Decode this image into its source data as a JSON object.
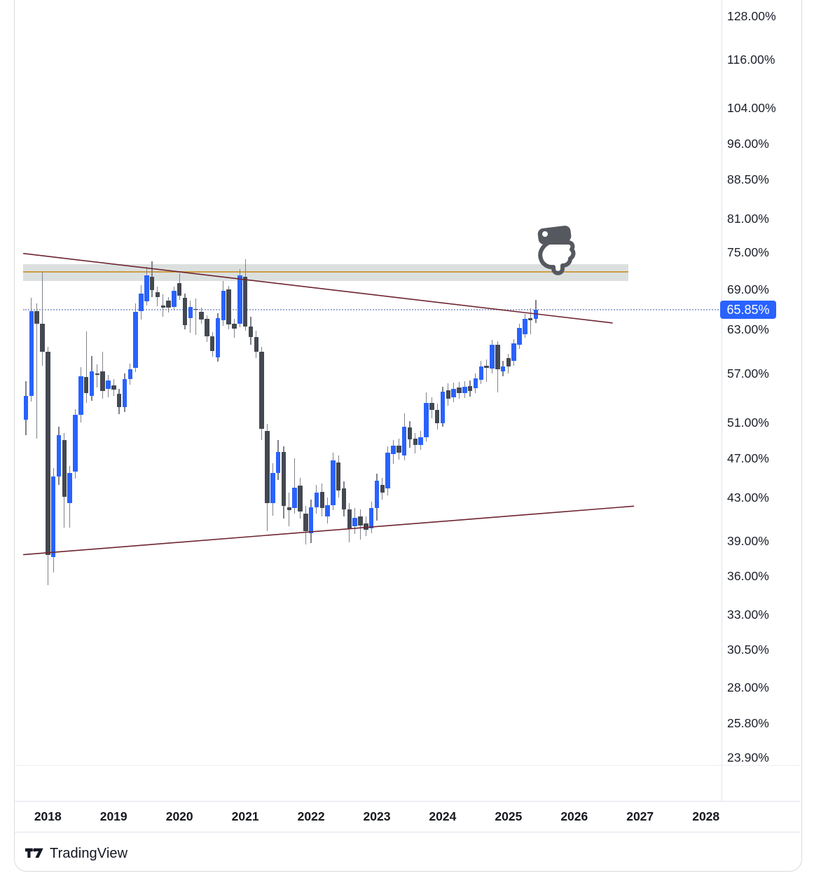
{
  "price_axis": {
    "tick_labels": [
      "128.00%",
      "116.00%",
      "104.00%",
      "96.00%",
      "88.50%",
      "81.00%",
      "75.00%",
      "69.00%",
      "63.00%",
      "57.00%",
      "51.00%",
      "47.00%",
      "43.00%",
      "39.00%",
      "36.00%",
      "33.00%",
      "30.50%",
      "28.00%",
      "25.80%",
      "23.90%"
    ],
    "tick_values": [
      128,
      116,
      104,
      96,
      88.5,
      81,
      75,
      69,
      63,
      57,
      51,
      47,
      43,
      39,
      36,
      33,
      30.5,
      28,
      25.8,
      23.9
    ],
    "last_price": {
      "value": 65.85,
      "label": "65.85%",
      "bg_color": "#2962FF",
      "text_color": "#ffffff"
    }
  },
  "time_axis": {
    "year_labels": [
      "2018",
      "2019",
      "2020",
      "2021",
      "2022",
      "2023",
      "2024",
      "2025",
      "2026",
      "2027",
      "2028"
    ],
    "first_year": 2018
  },
  "footer": {
    "brand": "TradingView"
  },
  "chart_data": {
    "type": "candlestick",
    "timeframe": "monthly",
    "start_month": "2017-09",
    "end_month": "2025-06",
    "y_scale": "log",
    "y_axis_visible_range_pct": [
      21.6,
      132.7
    ],
    "grid": "off",
    "last_price": 65.85,
    "colors": {
      "up": "#2962FF",
      "down": "#444850",
      "wick": "#7f828b",
      "trendline": "#6e2430",
      "zone_fill": "#cfd5d4",
      "zone_line": "#cf9d43",
      "price_line": "#9aabd6",
      "hand": "#55585e"
    },
    "candles": [
      [
        51.3,
        56.0,
        49.6,
        54.2
      ],
      [
        54.2,
        67.6,
        53.5,
        65.6
      ],
      [
        65.6,
        66.8,
        49.2,
        63.8
      ],
      [
        63.8,
        71.8,
        58.0,
        59.9
      ],
      [
        59.9,
        60.5,
        35.3,
        37.8
      ],
      [
        37.6,
        46.0,
        36.3,
        45.1
      ],
      [
        45.1,
        50.5,
        44.3,
        49.6
      ],
      [
        49.0,
        49.8,
        40.2,
        43.1
      ],
      [
        42.5,
        46.2,
        40.2,
        45.5
      ],
      [
        45.6,
        52.6,
        44.9,
        51.9
      ],
      [
        51.9,
        57.8,
        51.0,
        56.6
      ],
      [
        56.5,
        62.7,
        53.3,
        54.5
      ],
      [
        54.2,
        59.3,
        53.6,
        57.3
      ],
      [
        57.0,
        58.2,
        55.2,
        56.8
      ],
      [
        57.3,
        59.9,
        53.8,
        54.8
      ],
      [
        55.0,
        56.8,
        54.0,
        56.1
      ],
      [
        55.5,
        56.3,
        54.2,
        54.9
      ],
      [
        54.4,
        55.0,
        52.0,
        52.8
      ],
      [
        52.8,
        57.0,
        52.2,
        56.3
      ],
      [
        56.3,
        58.3,
        55.6,
        57.5
      ],
      [
        57.7,
        66.8,
        57.2,
        65.5
      ],
      [
        65.6,
        69.6,
        64.4,
        68.3
      ],
      [
        67.1,
        72.5,
        66.5,
        71.2
      ],
      [
        71.0,
        73.5,
        67.8,
        68.8
      ],
      [
        68.5,
        69.4,
        66.4,
        67.8
      ],
      [
        66.5,
        68.2,
        64.8,
        66.2
      ],
      [
        67.2,
        67.8,
        65.4,
        66.2
      ],
      [
        66.3,
        69.4,
        65.7,
        68.7
      ],
      [
        69.9,
        71.5,
        67.3,
        68.0
      ],
      [
        67.7,
        68.3,
        63.0,
        63.6
      ],
      [
        64.6,
        67.2,
        62.5,
        66.3
      ],
      [
        66.0,
        67.5,
        62.2,
        65.8
      ],
      [
        65.5,
        66.2,
        63.8,
        64.4
      ],
      [
        64.5,
        65.0,
        61.2,
        62.0
      ],
      [
        62.0,
        62.6,
        59.2,
        60.0
      ],
      [
        59.1,
        65.3,
        58.5,
        64.6
      ],
      [
        64.3,
        70.3,
        63.5,
        68.7
      ],
      [
        68.9,
        69.5,
        63.0,
        63.7
      ],
      [
        63.8,
        64.5,
        61.8,
        63.1
      ],
      [
        63.8,
        72.2,
        63.3,
        71.2
      ],
      [
        71.0,
        73.8,
        62.8,
        63.4
      ],
      [
        63.4,
        64.8,
        60.8,
        61.9
      ],
      [
        61.9,
        62.8,
        59.0,
        59.9
      ],
      [
        59.9,
        60.5,
        49.0,
        50.3
      ],
      [
        50.0,
        50.8,
        39.9,
        42.5
      ],
      [
        42.5,
        46.5,
        41.3,
        45.5
      ],
      [
        45.5,
        49.0,
        44.8,
        47.7
      ],
      [
        47.7,
        48.3,
        41.0,
        42.2
      ],
      [
        42.1,
        43.5,
        40.3,
        41.8
      ],
      [
        42.0,
        47.0,
        41.5,
        44.0
      ],
      [
        44.2,
        45.0,
        41.0,
        41.7
      ],
      [
        41.5,
        42.2,
        38.7,
        39.9
      ],
      [
        39.7,
        42.8,
        38.8,
        42.1
      ],
      [
        42.1,
        44.3,
        41.5,
        43.5
      ],
      [
        43.6,
        44.4,
        41.2,
        42.0
      ],
      [
        41.2,
        43.0,
        40.6,
        42.3
      ],
      [
        42.3,
        47.6,
        41.8,
        46.8
      ],
      [
        46.6,
        47.3,
        43.0,
        43.7
      ],
      [
        43.9,
        44.6,
        41.2,
        41.9
      ],
      [
        41.9,
        42.5,
        38.9,
        40.1
      ],
      [
        40.3,
        42.0,
        39.6,
        41.1
      ],
      [
        41.2,
        41.9,
        39.1,
        40.4
      ],
      [
        40.6,
        41.2,
        39.4,
        40.0
      ],
      [
        40.1,
        42.6,
        39.7,
        42.0
      ],
      [
        42.0,
        45.4,
        40.8,
        44.7
      ],
      [
        44.3,
        45.0,
        42.8,
        43.5
      ],
      [
        43.9,
        48.3,
        43.2,
        47.6
      ],
      [
        47.5,
        49.0,
        46.4,
        48.4
      ],
      [
        48.4,
        49.2,
        46.9,
        47.6
      ],
      [
        47.3,
        52.1,
        46.8,
        50.5
      ],
      [
        50.4,
        51.2,
        48.2,
        49.1
      ],
      [
        49.2,
        49.8,
        47.6,
        48.5
      ],
      [
        48.5,
        50.0,
        47.9,
        49.3
      ],
      [
        49.3,
        54.6,
        48.9,
        53.3
      ],
      [
        53.3,
        54.0,
        51.5,
        52.5
      ],
      [
        52.5,
        53.2,
        50.2,
        50.9
      ],
      [
        50.9,
        55.3,
        50.5,
        54.7
      ],
      [
        54.9,
        55.7,
        53.0,
        53.8
      ],
      [
        54.0,
        55.8,
        53.4,
        55.0
      ],
      [
        55.2,
        55.9,
        53.8,
        54.5
      ],
      [
        54.5,
        56.0,
        53.9,
        55.3
      ],
      [
        55.4,
        56.1,
        54.1,
        54.8
      ],
      [
        55.1,
        57.0,
        54.5,
        56.4
      ],
      [
        56.2,
        58.6,
        55.6,
        57.9
      ],
      [
        58.0,
        58.8,
        55.9,
        57.7
      ],
      [
        57.6,
        61.5,
        57.0,
        60.8
      ],
      [
        60.8,
        61.3,
        54.6,
        57.5
      ],
      [
        57.3,
        58.6,
        56.6,
        57.9
      ],
      [
        59.0,
        59.6,
        57.0,
        57.9
      ],
      [
        58.6,
        61.6,
        58.0,
        61.0
      ],
      [
        60.8,
        63.8,
        60.2,
        63.2
      ],
      [
        62.3,
        65.2,
        61.8,
        64.5
      ],
      [
        64.6,
        66.1,
        62.3,
        64.3
      ],
      [
        64.5,
        67.3,
        63.9,
        65.85
      ]
    ],
    "annotations": {
      "resistance_zone": {
        "top_pct": 73.0,
        "bottom_pct": 70.3,
        "mid_line_pct": 71.8
      },
      "trendlines": [
        {
          "name": "descending",
          "from_index": -0.5,
          "from_price": 74.8,
          "to_index": 107,
          "to_price": 63.9
        },
        {
          "name": "ascending",
          "from_index": -0.5,
          "from_price": 37.8,
          "to_index": 110.9,
          "to_price": 42.2
        }
      ],
      "sticker": {
        "name": "pointing-down-hand",
        "center_index": 97,
        "top_price": 79.8
      }
    }
  }
}
